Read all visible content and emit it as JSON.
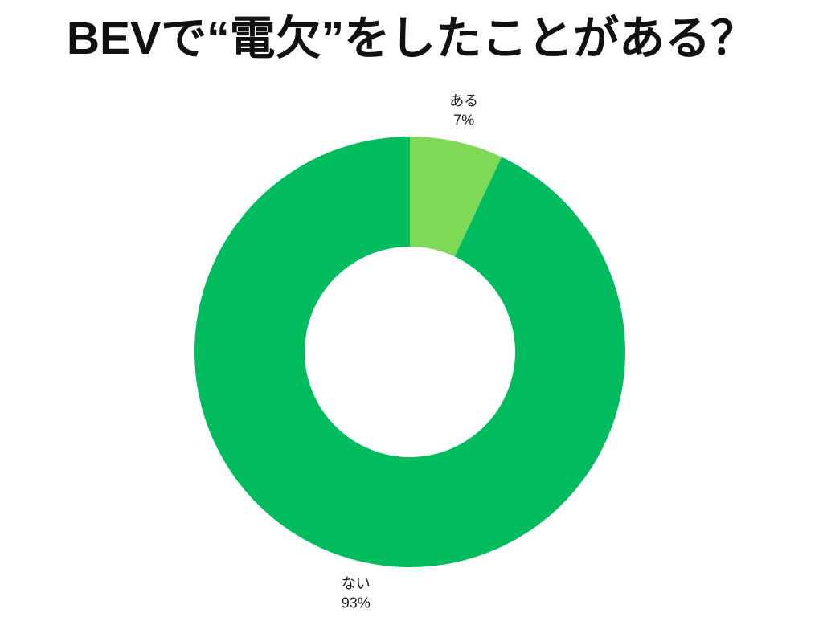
{
  "chart_data": {
    "type": "pie",
    "subtype": "donut",
    "title": "BEVで“電欠”をしたことがある？",
    "categories": [
      "ある",
      "ない"
    ],
    "values": [
      7,
      93
    ],
    "slices": [
      {
        "label": "ある",
        "pct_label": "7%",
        "value": 7,
        "color": "#7ED957"
      },
      {
        "label": "ない",
        "pct_label": "93%",
        "value": 93,
        "color": "#00BC5F"
      }
    ],
    "start_angle_deg": 0,
    "direction": "clockwise",
    "donut_hole_ratio": 0.49,
    "labels_position": "outside",
    "legend": "none",
    "background_color": "#ffffff",
    "title_color": "#111111",
    "label_text_color": "#1a1a1a"
  }
}
